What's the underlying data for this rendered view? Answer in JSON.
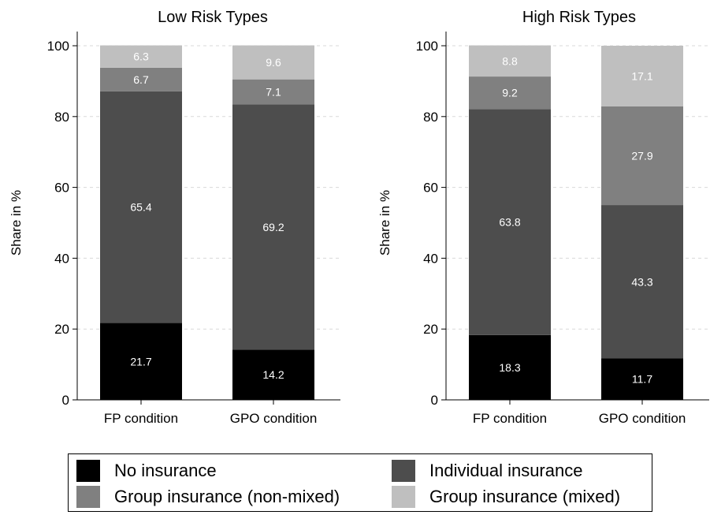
{
  "chart_data": [
    {
      "type": "bar",
      "stacked": true,
      "title": "Low Risk Types",
      "ylabel": "Share in %",
      "xlabel": "",
      "ylim": [
        0,
        100
      ],
      "yticks": [
        0,
        20,
        40,
        60,
        80,
        100
      ],
      "grid": true,
      "categories": [
        "FP condition",
        "GPO condition"
      ],
      "series": [
        {
          "name": "No insurance",
          "values": [
            21.7,
            14.2
          ]
        },
        {
          "name": "Individual insurance",
          "values": [
            65.4,
            69.2
          ]
        },
        {
          "name": "Group insurance (non-mixed)",
          "values": [
            6.7,
            7.1
          ]
        },
        {
          "name": "Group insurance (mixed)",
          "values": [
            6.3,
            9.6
          ]
        }
      ]
    },
    {
      "type": "bar",
      "stacked": true,
      "title": "High Risk Types",
      "ylabel": "Share in %",
      "xlabel": "",
      "ylim": [
        0,
        100
      ],
      "yticks": [
        0,
        20,
        40,
        60,
        80,
        100
      ],
      "grid": true,
      "categories": [
        "FP condition",
        "GPO condition"
      ],
      "series": [
        {
          "name": "No insurance",
          "values": [
            18.3,
            11.7
          ]
        },
        {
          "name": "Individual insurance",
          "values": [
            63.8,
            43.3
          ]
        },
        {
          "name": "Group insurance (non-mixed)",
          "values": [
            9.2,
            27.9
          ]
        },
        {
          "name": "Group insurance (mixed)",
          "values": [
            8.8,
            17.1
          ]
        }
      ]
    }
  ],
  "series_colors": [
    "#000000",
    "#4d4d4d",
    "#808080",
    "#bfbfbf"
  ],
  "legend": {
    "position": "bottom",
    "items": [
      {
        "label": "No insurance",
        "color": "#000000"
      },
      {
        "label": "Individual insurance",
        "color": "#4d4d4d"
      },
      {
        "label": "Group insurance (non-mixed)",
        "color": "#808080"
      },
      {
        "label": "Group insurance (mixed)",
        "color": "#bfbfbf"
      }
    ]
  }
}
